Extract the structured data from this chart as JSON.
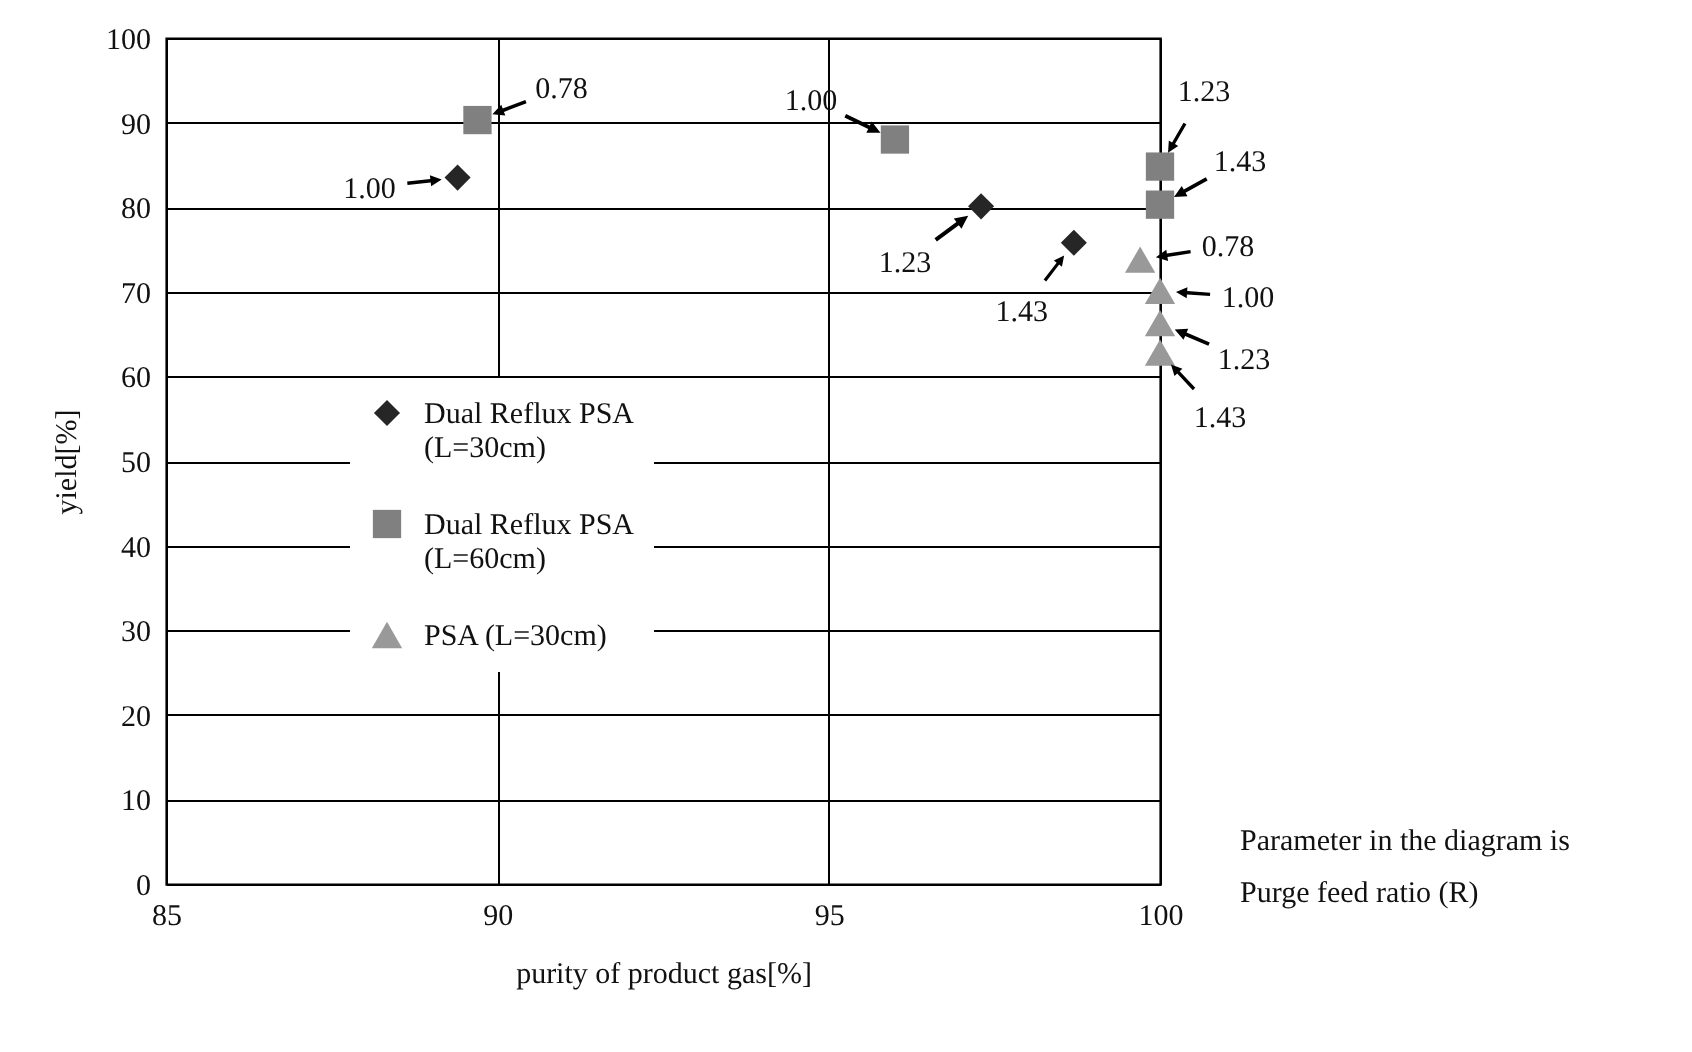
{
  "chart_data": {
    "type": "scatter",
    "xlabel": "purity of product gas[%]",
    "ylabel": "yield[%]",
    "xlim": [
      85,
      100
    ],
    "xticks": [
      85,
      90,
      95,
      100
    ],
    "ylim": [
      0,
      100
    ],
    "yticks": [
      0,
      10,
      20,
      30,
      40,
      50,
      60,
      70,
      80,
      90,
      100
    ],
    "grid": true,
    "legend": "bottom left",
    "series": [
      {
        "name": "Dual Reflux PSA (L=30cm)",
        "color": "#262626",
        "marker": "diamond",
        "x": [
          89.4,
          97.3,
          98.7
        ],
        "values": [
          83.5,
          80.1,
          75.8
        ]
      },
      {
        "name": "Dual Reflux PSA (L=60cm)",
        "color": "#808080",
        "marker": "square",
        "x": [
          89.7,
          96.0,
          100,
          100
        ],
        "values": [
          90.3,
          88.0,
          84.8,
          80.3
        ]
      },
      {
        "name": "PSA (L=30cm)",
        "color": "#999999",
        "marker": "triangle",
        "x": [
          99.7,
          100,
          100,
          100
        ],
        "values": [
          73.8,
          70.1,
          66.3,
          62.8
        ]
      }
    ],
    "annotations": [
      {
        "text": "1.00",
        "x": 89.4,
        "y": 83.5
      },
      {
        "text": "0.78",
        "x": 89.7,
        "y": 90.3
      },
      {
        "text": "1.00",
        "x": 96.0,
        "y": 88.0
      },
      {
        "text": "1.23",
        "x": 97.3,
        "y": 80.1
      },
      {
        "text": "1.43",
        "x": 98.7,
        "y": 75.8
      },
      {
        "text": "1.23",
        "x": 100,
        "y": 84.8
      },
      {
        "text": "1.43",
        "x": 100,
        "y": 80.3
      },
      {
        "text": "0.78",
        "x": 99.7,
        "y": 73.8
      },
      {
        "text": "1.00",
        "x": 100,
        "y": 70.1
      },
      {
        "text": "1.23",
        "x": 100,
        "y": 66.3
      },
      {
        "text": "1.43",
        "x": 100,
        "y": 62.8
      },
      "Parameter in the diagram is Purge feed ratio (R)"
    ]
  }
}
